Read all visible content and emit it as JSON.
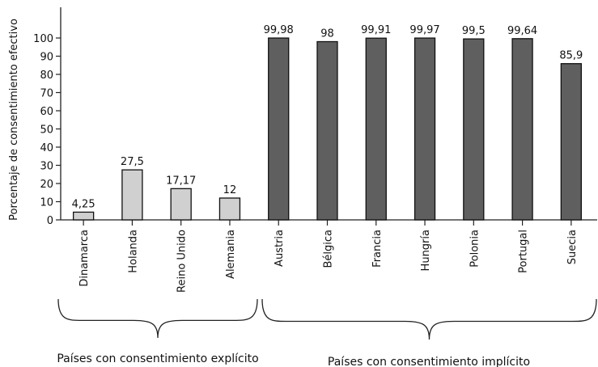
{
  "chart_data": {
    "type": "bar",
    "ylabel": "Porcentaje de consentimiento efectivo",
    "ylim": [
      0,
      100
    ],
    "yticks": [
      0,
      10,
      20,
      30,
      40,
      50,
      60,
      70,
      80,
      90,
      100
    ],
    "grid": false,
    "categories": [
      "Dinamarca",
      "Holanda",
      "Reino Unido",
      "Alemania",
      "Austria",
      "Bélgica",
      "Francia",
      "Hungría",
      "Polonia",
      "Portugal",
      "Suecia"
    ],
    "values": [
      4.25,
      27.5,
      17.17,
      12,
      99.98,
      98,
      99.91,
      99.97,
      99.5,
      99.64,
      85.9
    ],
    "value_labels": [
      "4,25",
      "27,5",
      "17,17",
      "12",
      "99,98",
      "98",
      "99,91",
      "99,97",
      "99,5",
      "99,64",
      "85,9"
    ],
    "groups": [
      {
        "label": "Países con consentimiento explícito",
        "members": [
          "Dinamarca",
          "Holanda",
          "Reino Unido",
          "Alemania"
        ],
        "color": "#d0d0d0"
      },
      {
        "label": "Países con consentimiento implícito",
        "members": [
          "Austria",
          "Bélgica",
          "Francia",
          "Hungría",
          "Polonia",
          "Portugal",
          "Suecia"
        ],
        "color": "#5f5f5f"
      }
    ]
  }
}
